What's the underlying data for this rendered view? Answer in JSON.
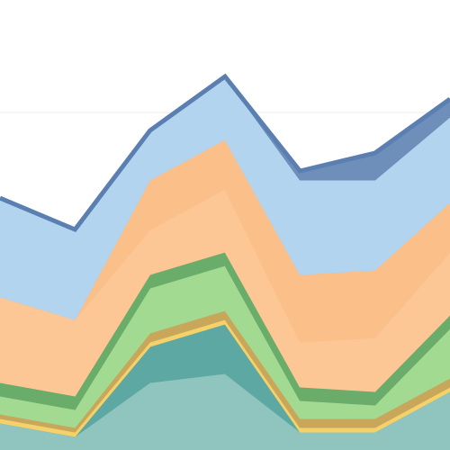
{
  "chart_data": {
    "type": "area",
    "stacked": true,
    "title": "",
    "xlabel": "",
    "ylabel": "",
    "x": [
      0,
      1,
      2,
      3,
      4,
      5,
      6
    ],
    "ylim": [
      0,
      100
    ],
    "grid": "horizontal",
    "legend": "none",
    "series": [
      {
        "values": [
          6,
          3,
          15,
          17,
          4,
          4,
          13
        ],
        "color": "#8fc5be"
      },
      {
        "values": [
          0,
          0,
          8,
          11,
          0,
          0,
          0
        ],
        "color": "#5da8a2"
      },
      {
        "values": [
          1,
          1,
          1,
          1,
          1,
          1,
          1
        ],
        "color": "#f4d16b"
      },
      {
        "values": [
          1,
          1,
          2,
          2,
          2,
          2,
          2
        ],
        "color": "#c9a75a"
      },
      {
        "values": [
          4,
          4,
          10,
          10,
          4,
          3,
          11
        ],
        "color": "#a3da92"
      },
      {
        "values": [
          3,
          3,
          3,
          3,
          3,
          3,
          3
        ],
        "color": "#6aad6a"
      },
      {
        "values": [
          19,
          17,
          10,
          14,
          10,
          12,
          14
        ],
        "color": "#fdc795"
      },
      {
        "values": [
          0,
          0,
          11,
          11,
          15,
          15,
          11
        ],
        "color": "#fbbf8a"
      },
      {
        "values": [
          22,
          20,
          11,
          14,
          21,
          20,
          19
        ],
        "color": "#b3d4ef"
      },
      {
        "values": [
          0,
          0,
          0,
          0,
          2,
          6,
          4
        ],
        "color": "#6e8fba"
      }
    ],
    "edge_color": "#5a7fb0"
  }
}
